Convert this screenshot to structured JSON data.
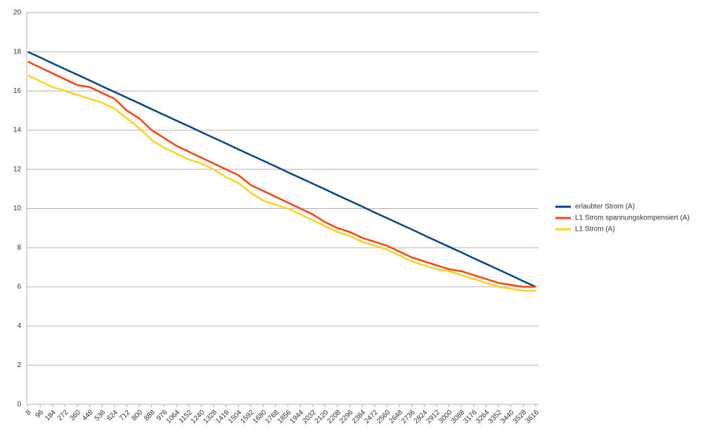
{
  "chart_data": {
    "type": "line",
    "x": [
      8,
      96,
      184,
      272,
      360,
      448,
      536,
      624,
      712,
      800,
      888,
      976,
      1064,
      1152,
      1240,
      1328,
      1416,
      1504,
      1592,
      1680,
      1768,
      1856,
      1944,
      2032,
      2120,
      2208,
      2296,
      2384,
      2472,
      2560,
      2648,
      2736,
      2824,
      2912,
      3000,
      3088,
      3176,
      3264,
      3352,
      3440,
      3528,
      3616
    ],
    "series": [
      {
        "name": "erlaubter Strom (A)",
        "color": "#004586",
        "values": [
          18,
          17.71,
          17.41,
          17.12,
          16.83,
          16.54,
          16.24,
          15.95,
          15.66,
          15.37,
          15.07,
          14.78,
          14.49,
          14.2,
          13.9,
          13.61,
          13.32,
          13.02,
          12.73,
          12.44,
          12.15,
          11.85,
          11.56,
          11.27,
          10.98,
          10.68,
          10.39,
          10.1,
          9.8,
          9.51,
          9.22,
          8.93,
          8.63,
          8.34,
          8.05,
          7.76,
          7.46,
          7.17,
          6.88,
          6.59,
          6.29,
          6
        ]
      },
      {
        "name": "L1 Strom spannungskompensiert (A)",
        "color": "#ff420e",
        "values": [
          17.5,
          17.2,
          16.9,
          16.6,
          16.3,
          16.2,
          15.9,
          15.6,
          15,
          14.6,
          14,
          13.6,
          13.2,
          12.9,
          12.6,
          12.3,
          12,
          11.7,
          11.2,
          10.9,
          10.6,
          10.3,
          10,
          9.7,
          9.3,
          9,
          8.8,
          8.5,
          8.3,
          8.1,
          7.8,
          7.5,
          7.3,
          7.1,
          6.9,
          6.8,
          6.6,
          6.4,
          6.2,
          6.1,
          6,
          6
        ]
      },
      {
        "name": "L1 Strom (A)",
        "color": "#ffd320",
        "values": [
          16.8,
          16.5,
          16.2,
          16,
          15.8,
          15.6,
          15.4,
          15.1,
          14.6,
          14.1,
          13.5,
          13.1,
          12.8,
          12.5,
          12.3,
          12,
          11.6,
          11.3,
          10.8,
          10.4,
          10.2,
          10,
          9.7,
          9.4,
          9.1,
          8.8,
          8.6,
          8.3,
          8.1,
          7.9,
          7.6,
          7.3,
          7.1,
          6.9,
          6.8,
          6.6,
          6.4,
          6.2,
          6,
          5.9,
          5.8,
          5.8
        ]
      }
    ],
    "xlim": [
      0,
      3636
    ],
    "xticks": [
      8,
      96,
      184,
      272,
      360,
      448,
      536,
      624,
      712,
      800,
      888,
      976,
      1064,
      1152,
      1240,
      1328,
      1416,
      1504,
      1592,
      1680,
      1768,
      1856,
      1944,
      2032,
      2120,
      2208,
      2296,
      2384,
      2472,
      2560,
      2648,
      2736,
      2824,
      2912,
      3000,
      3088,
      3176,
      3264,
      3352,
      3440,
      3528,
      3616
    ],
    "ylim": [
      0,
      20
    ],
    "yticks": [
      0,
      2,
      4,
      6,
      8,
      10,
      12,
      14,
      16,
      18,
      20
    ],
    "grid": true,
    "legend": "right"
  }
}
